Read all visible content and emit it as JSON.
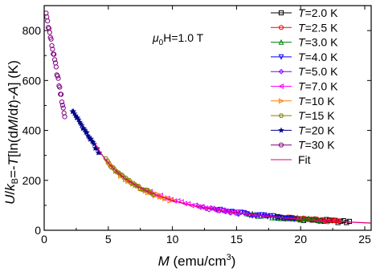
{
  "chart_data": {
    "type": "scatter",
    "title": "",
    "xlabel": {
      "prefix": "M",
      "units": "(emu/cm",
      "sup": "3",
      "close": ")"
    },
    "ylabel": "U/k_B=-T[ln(dM/dt)-A] (K)",
    "xlim": [
      0,
      25.5
    ],
    "ylim": [
      0,
      900
    ],
    "x_ticks": [
      0,
      5,
      10,
      15,
      20,
      25
    ],
    "y_ticks": [
      0,
      200,
      400,
      600,
      800
    ],
    "annotation": {
      "mu": "μ",
      "sub": "0",
      "rest": "H=1.0 T"
    },
    "legend_placement": "top-right",
    "series": [
      {
        "name": "T=2.0 K",
        "color": "#000000",
        "marker": "square",
        "x_start": 18.0,
        "x_end": 23.8
      },
      {
        "name": "T=2.5 K",
        "color": "#ff0000",
        "marker": "circle",
        "x_start": 18.5,
        "x_end": 23.0
      },
      {
        "name": "T=3.0 K",
        "color": "#008000",
        "marker": "triangle-up",
        "x_start": 15.8,
        "x_end": 21.5
      },
      {
        "name": "T=4.0 K",
        "color": "#0000ff",
        "marker": "triangle-down",
        "x_start": 13.5,
        "x_end": 19.5
      },
      {
        "name": "T=5.0 K",
        "color": "#8000ff",
        "marker": "diamond",
        "x_start": 12.0,
        "x_end": 17.5
      },
      {
        "name": "T=7.0 K",
        "color": "#ff00ff",
        "marker": "triangle-left",
        "x_start": 8.0,
        "x_end": 15.0
      },
      {
        "name": "T=10 K",
        "color": "#ff8000",
        "marker": "triangle-right",
        "x_start": 5.0,
        "x_end": 10.0
      },
      {
        "name": "T=15 K",
        "color": "#808000",
        "marker": "hexagon",
        "x_start": 4.8,
        "x_end": 8.5
      },
      {
        "name": "T=20 K",
        "color": "#00008b",
        "marker": "star",
        "x_start": 2.2,
        "x_end": 4.3
      },
      {
        "name": "T=30 K",
        "color": "#800080",
        "marker": "pentagon-circle",
        "x_start": 0.15,
        "x_end": 1.6
      },
      {
        "name": "Fit",
        "color": "#e0007a",
        "marker": "line"
      }
    ],
    "fit": {
      "form": "a/M + b",
      "a": 1500,
      "b": -30
    }
  }
}
